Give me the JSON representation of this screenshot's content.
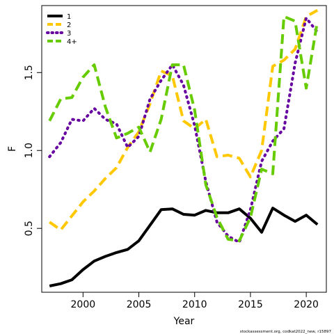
{
  "chart_data": {
    "type": "line",
    "title": "",
    "xlabel": "Year",
    "ylabel": "F",
    "xlim": [
      1996.3,
      2021.8
    ],
    "ylim": [
      0.09,
      1.93
    ],
    "x_ticks": [
      2000,
      2005,
      2010,
      2015,
      2020
    ],
    "x_tick_labels": [
      "2000",
      "2005",
      "2010",
      "2015",
      "2020"
    ],
    "y_ticks": [
      0.5,
      1.0,
      1.5
    ],
    "y_tick_labels": [
      "0.5",
      "1.0",
      "1.5"
    ],
    "grid": false,
    "legend_position": "top-left",
    "x": [
      1997,
      1998,
      1999,
      2000,
      2001,
      2002,
      2003,
      2004,
      2005,
      2006,
      2007,
      2008,
      2009,
      2010,
      2011,
      2012,
      2013,
      2014,
      2015,
      2016,
      2017,
      2018,
      2019,
      2020,
      2021
    ],
    "series": [
      {
        "name": "1",
        "color": "#000000",
        "dash": "solid",
        "values": [
          0.13,
          0.145,
          0.17,
          0.235,
          0.29,
          0.32,
          0.345,
          0.365,
          0.42,
          0.52,
          0.62,
          0.625,
          0.59,
          0.585,
          0.615,
          0.6,
          0.6,
          0.625,
          0.565,
          0.475,
          0.63,
          0.585,
          0.545,
          0.585,
          0.525
        ]
      },
      {
        "name": "2",
        "color": "#FFC800",
        "dash": "dashed",
        "values": [
          0.54,
          0.49,
          0.58,
          0.67,
          0.74,
          0.82,
          0.89,
          1.02,
          1.12,
          1.3,
          1.51,
          1.48,
          1.19,
          1.14,
          1.2,
          0.96,
          0.97,
          0.95,
          0.83,
          1.0,
          1.54,
          1.58,
          1.65,
          1.86,
          1.9
        ]
      },
      {
        "name": "3",
        "color": "#6600A0",
        "dash": "dotted",
        "values": [
          0.96,
          1.05,
          1.2,
          1.19,
          1.27,
          1.2,
          1.17,
          1.02,
          1.09,
          1.33,
          1.45,
          1.55,
          1.42,
          1.16,
          0.8,
          0.54,
          0.45,
          0.41,
          0.62,
          0.93,
          1.06,
          1.14,
          1.56,
          1.85,
          1.76
        ]
      },
      {
        "name": "4+",
        "color": "#66CC00",
        "dash": "dashed",
        "values": [
          1.19,
          1.33,
          1.34,
          1.47,
          1.55,
          1.28,
          1.08,
          1.11,
          1.15,
          0.99,
          1.2,
          1.55,
          1.55,
          1.26,
          0.78,
          0.57,
          0.43,
          0.42,
          0.57,
          0.88,
          0.85,
          1.86,
          1.83,
          1.4,
          1.83
        ]
      }
    ]
  },
  "footer": {
    "credit": "stockassessment.org, codkat2022_new, r15897"
  }
}
